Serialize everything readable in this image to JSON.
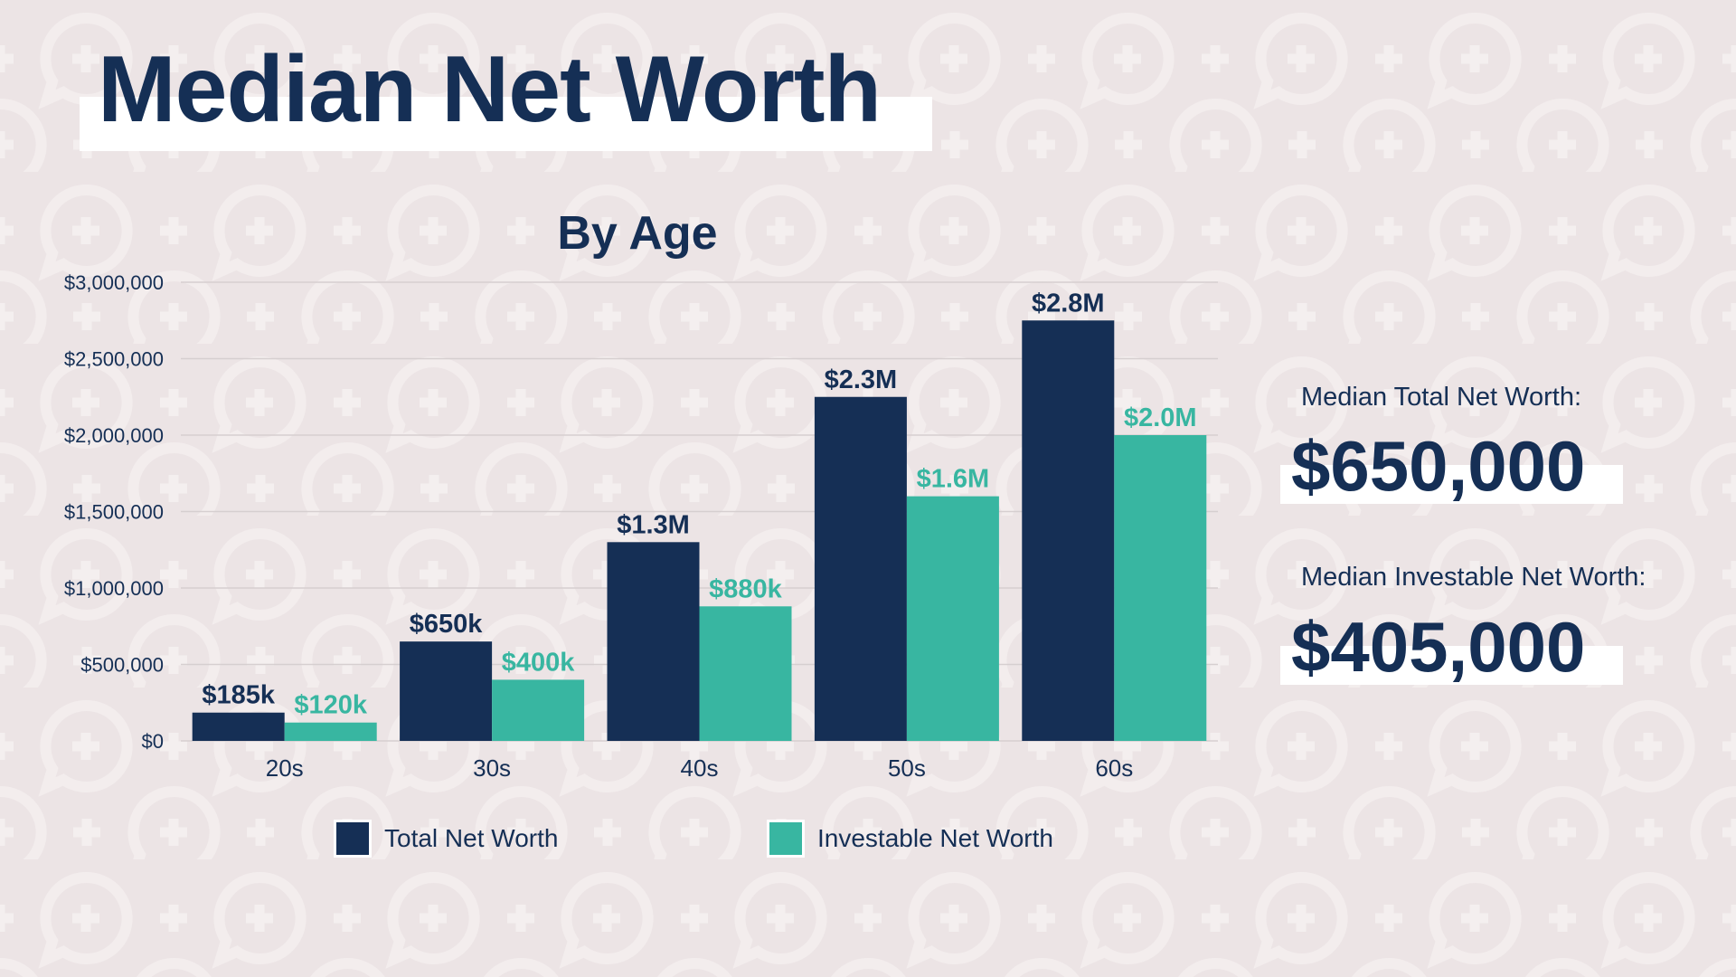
{
  "title": "Median Net Worth",
  "colors": {
    "background": "#ece4e5",
    "navy": "#152f55",
    "teal": "#38b6a1",
    "pattern": "#f4efef"
  },
  "background_pattern_icons": [
    "speech-bubble-plus-icon",
    "plus-icon"
  ],
  "chart_data": {
    "type": "bar",
    "title": "By Age",
    "categories": [
      "20s",
      "30s",
      "40s",
      "50s",
      "60s"
    ],
    "series": [
      {
        "name": "Total Net Worth",
        "color": "#152f55",
        "values": [
          185000,
          650000,
          1300000,
          2250000,
          2750000
        ],
        "labels": [
          "$185k",
          "$650k",
          "$1.3M",
          "$2.3M",
          "$2.8M"
        ]
      },
      {
        "name": "Investable Net Worth",
        "color": "#38b6a1",
        "values": [
          120000,
          400000,
          880000,
          1600000,
          2000000
        ],
        "labels": [
          "$120k",
          "$400k",
          "$880k",
          "$1.6M",
          "$2.0M"
        ]
      }
    ],
    "ylim": [
      0,
      3000000
    ],
    "yticks": [
      0,
      500000,
      1000000,
      1500000,
      2000000,
      2500000,
      3000000
    ],
    "ytick_labels": [
      "$0",
      "$500,000",
      "$1,000,000",
      "$1,500,000",
      "$2,000,000",
      "$2,500,000",
      "$3,000,000"
    ],
    "grid": true,
    "legend": "bottom"
  },
  "stats": [
    {
      "label": "Median Total Net Worth:",
      "value": "$650,000"
    },
    {
      "label": "Median Investable Net Worth:",
      "value": "$405,000"
    }
  ]
}
